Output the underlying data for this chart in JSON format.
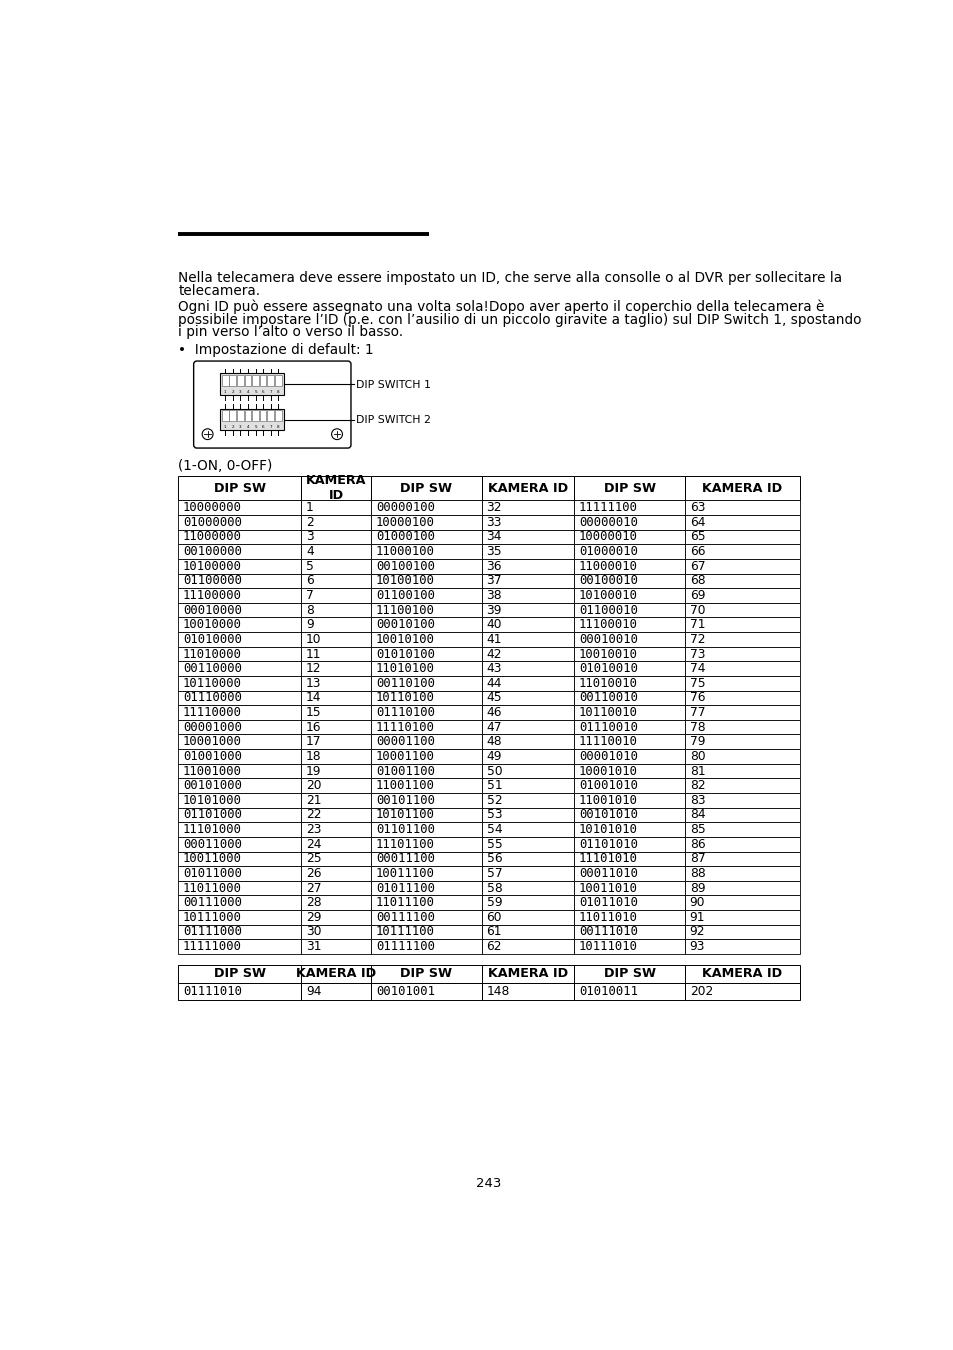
{
  "background_color": "#ffffff",
  "page_number": "243",
  "paragraph1_line1": "Nella telecamera deve essere impostato un ID, che serve alla consolle o al DVR per sollecitare la",
  "paragraph1_line2": "telecamera.",
  "paragraph2_line1": "Ogni ID può essere assegnato una volta sola!Dopo aver aperto il coperchio della telecamera è",
  "paragraph2_line2": "possibile impostare l’ID (p.e. con l’ausilio di un piccolo giravite a taglio) sul DIP Switch 1, spostando",
  "paragraph2_line3": "i pin verso l’alto o verso il basso.",
  "bullet": "•  Impostazione di default: 1",
  "label_dip1": "DIP SWITCH 1",
  "label_dip2": "DIP SWITCH 2",
  "note": "(1-ON, 0-OFF)",
  "main_table_headers": [
    "DIP SW",
    "KAMERA\nID",
    "DIP SW",
    "KAMERA ID",
    "DIP SW",
    "KAMERA ID"
  ],
  "main_table_col1": [
    "10000000",
    "01000000",
    "11000000",
    "00100000",
    "10100000",
    "01100000",
    "11100000",
    "00010000",
    "10010000",
    "01010000",
    "11010000",
    "00110000",
    "10110000",
    "01110000",
    "11110000",
    "00001000",
    "10001000",
    "01001000",
    "11001000",
    "00101000",
    "10101000",
    "01101000",
    "11101000",
    "00011000",
    "10011000",
    "01011000",
    "11011000",
    "00111000",
    "10111000",
    "01111000",
    "11111000"
  ],
  "main_table_col2": [
    "1",
    "2",
    "3",
    "4",
    "5",
    "6",
    "7",
    "8",
    "9",
    "10",
    "11",
    "12",
    "13",
    "14",
    "15",
    "16",
    "17",
    "18",
    "19",
    "20",
    "21",
    "22",
    "23",
    "24",
    "25",
    "26",
    "27",
    "28",
    "29",
    "30",
    "31"
  ],
  "main_table_col3": [
    "00000100",
    "10000100",
    "01000100",
    "11000100",
    "00100100",
    "10100100",
    "01100100",
    "11100100",
    "00010100",
    "10010100",
    "01010100",
    "11010100",
    "00110100",
    "10110100",
    "01110100",
    "11110100",
    "00001100",
    "10001100",
    "01001100",
    "11001100",
    "00101100",
    "10101100",
    "01101100",
    "11101100",
    "00011100",
    "10011100",
    "01011100",
    "11011100",
    "00111100",
    "10111100",
    "01111100"
  ],
  "main_table_col4": [
    "32",
    "33",
    "34",
    "35",
    "36",
    "37",
    "38",
    "39",
    "40",
    "41",
    "42",
    "43",
    "44",
    "45",
    "46",
    "47",
    "48",
    "49",
    "50",
    "51",
    "52",
    "53",
    "54",
    "55",
    "56",
    "57",
    "58",
    "59",
    "60",
    "61",
    "62"
  ],
  "main_table_col5": [
    "11111100",
    "00000010",
    "10000010",
    "01000010",
    "11000010",
    "00100010",
    "10100010",
    "01100010",
    "11100010",
    "00010010",
    "10010010",
    "01010010",
    "11010010",
    "00110010",
    "10110010",
    "01110010",
    "11110010",
    "00001010",
    "10001010",
    "01001010",
    "11001010",
    "00101010",
    "10101010",
    "01101010",
    "11101010",
    "00011010",
    "10011010",
    "01011010",
    "11011010",
    "00111010",
    "10111010"
  ],
  "main_table_col6": [
    "63",
    "64",
    "65",
    "66",
    "67",
    "68",
    "69",
    "70",
    "71",
    "72",
    "73",
    "74",
    "75",
    "76",
    "77",
    "78",
    "79",
    "80",
    "81",
    "82",
    "83",
    "84",
    "85",
    "86",
    "87",
    "88",
    "89",
    "90",
    "91",
    "92",
    "93"
  ],
  "extra_table_headers": [
    "DIP SW",
    "KAMERA ID",
    "DIP SW",
    "KAMERA ID",
    "DIP SW",
    "KAMERA ID"
  ],
  "extra_table_row": [
    "01111010",
    "94",
    "00101001",
    "148",
    "01010011",
    "202"
  ]
}
